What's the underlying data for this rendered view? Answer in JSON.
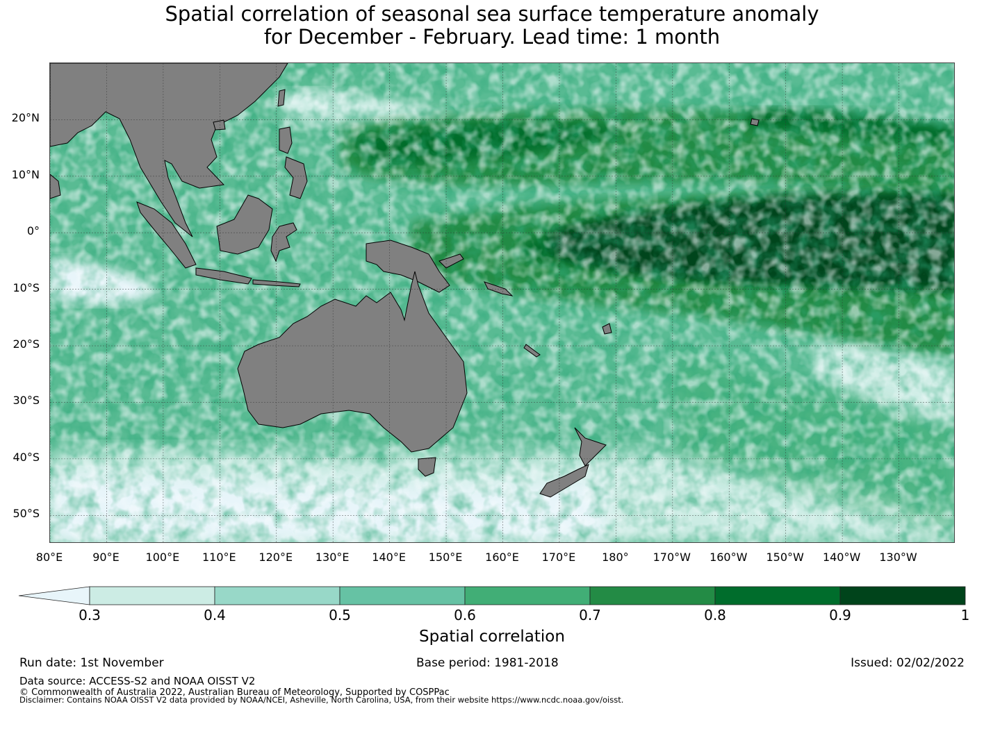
{
  "title": {
    "line1": "Spatial correlation of seasonal sea surface temperature anomaly",
    "line2": "for December - February. Lead time: 1 month"
  },
  "map": {
    "lat_labels": [
      "20°N",
      "10°N",
      "0°",
      "10°S",
      "20°S",
      "30°S",
      "40°S",
      "50°S"
    ],
    "lat_values": [
      20,
      10,
      0,
      -10,
      -20,
      -30,
      -40,
      -50
    ],
    "lon_labels": [
      "80°E",
      "90°E",
      "100°E",
      "110°E",
      "120°E",
      "130°E",
      "140°E",
      "150°E",
      "160°E",
      "170°E",
      "180°",
      "170°W",
      "160°W",
      "150°W",
      "140°W",
      "130°W"
    ],
    "lon_values": [
      80,
      90,
      100,
      110,
      120,
      130,
      140,
      150,
      160,
      170,
      180,
      190,
      200,
      210,
      220,
      230
    ],
    "lon_range": [
      80,
      240
    ],
    "lat_range": [
      -55,
      30
    ],
    "land_color": "#808080",
    "grid": true
  },
  "colorbar": {
    "label": "Spatial correlation",
    "ticks": [
      "0.3",
      "0.4",
      "0.5",
      "0.6",
      "0.7",
      "0.8",
      "0.9",
      "1"
    ],
    "tick_values": [
      0.3,
      0.4,
      0.5,
      0.6,
      0.7,
      0.8,
      0.9,
      1.0
    ],
    "under_color": "#e8f5fa",
    "colors": [
      "#ccece4",
      "#98d8c8",
      "#66c2a4",
      "#41ae76",
      "#238b45",
      "#006d2c",
      "#00441b"
    ]
  },
  "footer": {
    "run_date": "Run date: 1st November",
    "base_period": "Base period: 1981-2018",
    "issued": "Issued: 02/02/2022",
    "data_source": "Data source: ACCESS-S2 and NOAA OISST V2",
    "copyright": "© Commonwealth of Australia 2022, Australian Bureau of Meteorology, Supported by COSPPac",
    "disclaimer": "Disclaimer: Contains NOAA OISST V2 data provided by NOAA/NCEI, Asheville, North Carolina, USA, from their website https://www.ncdc.noaa.gov/oisst."
  }
}
